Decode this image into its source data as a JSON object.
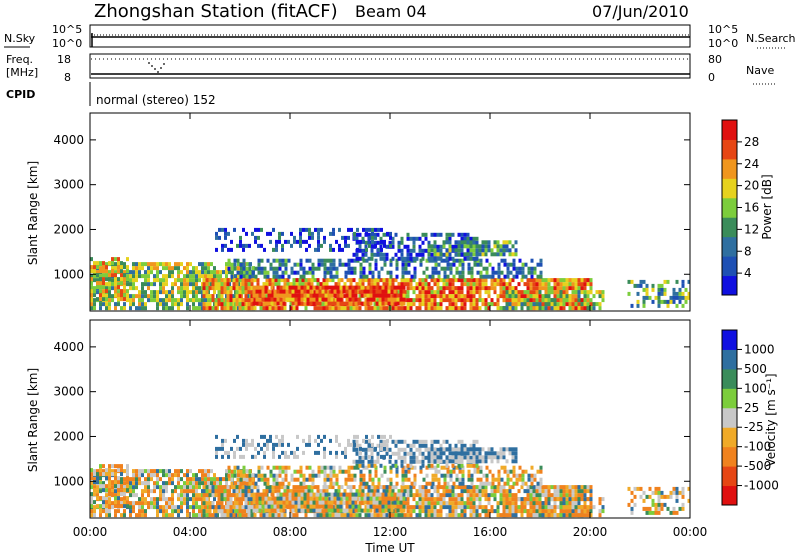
{
  "header": {
    "station_title": "Zhongshan Station (fitACF)",
    "beam": "Beam 04",
    "date": "07/Jun/2010"
  },
  "noise_panel": {
    "left_label": "N.Sky",
    "right_label": "N.Search",
    "left_ticks": [
      "10^5",
      "10^0"
    ],
    "right_ticks": [
      "10^5",
      "10^0"
    ]
  },
  "freq_panel": {
    "left_label_line1": "Freq.",
    "left_label_line2": "[MHz]",
    "right_label": "Nave",
    "left_ticks": [
      "18",
      "8"
    ],
    "right_ticks": [
      "80",
      "0"
    ]
  },
  "cpid_panel": {
    "label": "CPID",
    "value": "normal (stereo) 152"
  },
  "colors": {
    "power_scale": [
      "#1010e0",
      "#1e50b4",
      "#2f6fa0",
      "#3a8c5a",
      "#7ccd3c",
      "#e6d21e",
      "#f0961e",
      "#e64614",
      "#e01010"
    ],
    "velocity_scale": [
      "#e01010",
      "#e64614",
      "#f0821e",
      "#f0aa28",
      "#c8c8c8",
      "#7ccd3c",
      "#3a8c5a",
      "#2f6fa0",
      "#1010e0"
    ]
  },
  "chart_data": [
    {
      "type": "heatmap",
      "name": "power",
      "ylabel": "Slant Range [km]",
      "ylim": [
        180,
        4600
      ],
      "yticks": [
        "1000",
        "2000",
        "3000",
        "4000"
      ],
      "xlim_hours": [
        0,
        24
      ],
      "colorbar_label": "Power [dB]",
      "colorbar_ticks": [
        "4",
        "8",
        "12",
        "16",
        "20",
        "24",
        "28"
      ],
      "colorbar_range": [
        0,
        32
      ]
    },
    {
      "type": "heatmap",
      "name": "velocity",
      "ylabel": "Slant Range [km]",
      "ylim": [
        180,
        4600
      ],
      "yticks": [
        "1000",
        "2000",
        "3000",
        "4000"
      ],
      "xlim_hours": [
        0,
        24
      ],
      "colorbar_label": "Velocity [m s⁻¹]",
      "colorbar_ticks": [
        "1000",
        "500",
        "100",
        "25",
        "-25",
        "-100",
        "-500",
        "-1000"
      ]
    }
  ],
  "x_axis": {
    "label": "Time UT",
    "ticks": [
      "00:00",
      "04:00",
      "08:00",
      "12:00",
      "16:00",
      "20:00",
      "00:00"
    ]
  }
}
